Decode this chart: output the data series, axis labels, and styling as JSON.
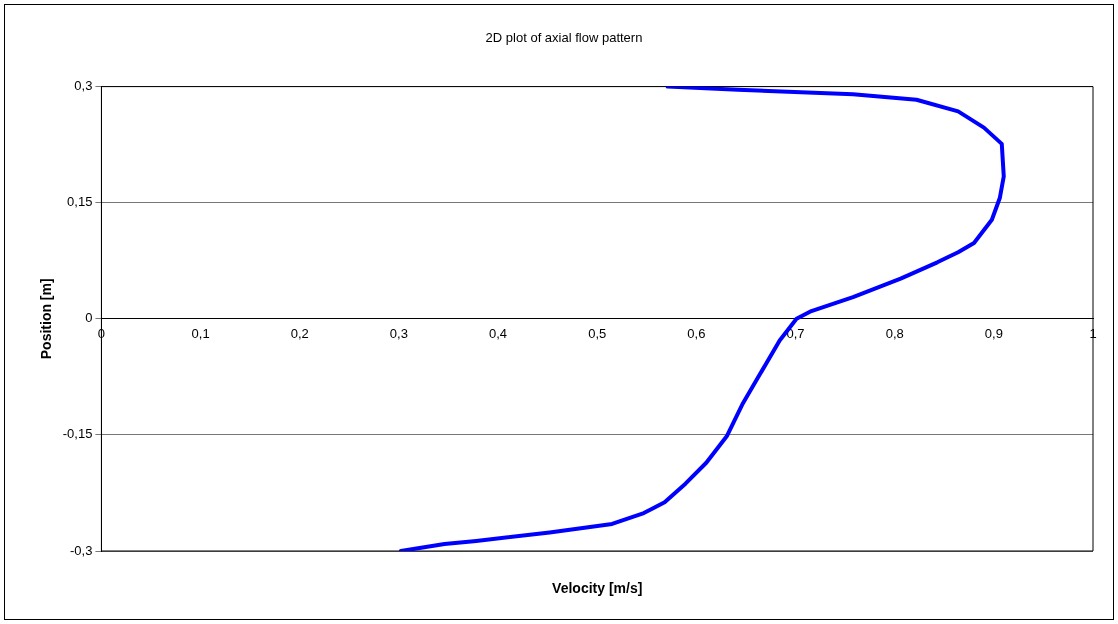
{
  "chart_data": {
    "type": "line",
    "title": "2D plot of axial flow pattern",
    "xlabel": "Velocity [m/s]",
    "ylabel": "Position [m]",
    "x": [
      0.571,
      0.642,
      0.758,
      0.822,
      0.864,
      0.89,
      0.908,
      0.91,
      0.906,
      0.898,
      0.88,
      0.864,
      0.843,
      0.806,
      0.758,
      0.716,
      0.701,
      0.684,
      0.663,
      0.647,
      0.631,
      0.61,
      0.589,
      0.568,
      0.547,
      0.515,
      0.452,
      0.378,
      0.346,
      0.302
    ],
    "series": [
      {
        "color": "#0000ff",
        "values": [
          0.3,
          0.296,
          0.29,
          0.283,
          0.268,
          0.247,
          0.226,
          0.184,
          0.156,
          0.128,
          0.098,
          0.086,
          0.073,
          0.052,
          0.028,
          0.01,
          0,
          -0.028,
          -0.074,
          -0.109,
          -0.151,
          -0.186,
          -0.213,
          -0.237,
          -0.251,
          -0.265,
          -0.276,
          -0.287,
          -0.291,
          -0.3
        ]
      }
    ],
    "xlim": [
      0,
      1
    ],
    "xticks": [
      0,
      {
        "value": 0.1,
        "label": "0,1"
      },
      {
        "value": 0.2,
        "label": "0,2"
      },
      {
        "value": 0.3,
        "label": "0,3"
      },
      {
        "value": 0.4,
        "label": "0,4"
      },
      {
        "value": 0.5,
        "label": "0,5"
      },
      {
        "value": 0.6,
        "label": "0,6"
      },
      {
        "value": 0.7,
        "label": "0,7"
      },
      {
        "value": 0.8,
        "label": "0,8"
      },
      {
        "value": 0.9,
        "label": "0,9"
      },
      1
    ],
    "ylim": [
      -0.3,
      0.3
    ],
    "yticks": [
      {
        "value": -0.3,
        "label": "-0,3"
      },
      {
        "value": -0.15,
        "label": "-0,15"
      },
      0,
      {
        "value": 0.15,
        "label": "0,15"
      },
      {
        "value": 0.3,
        "label": "0,3"
      }
    ],
    "grid": "y",
    "legend": false,
    "marker": "none",
    "line_style": "solid"
  }
}
